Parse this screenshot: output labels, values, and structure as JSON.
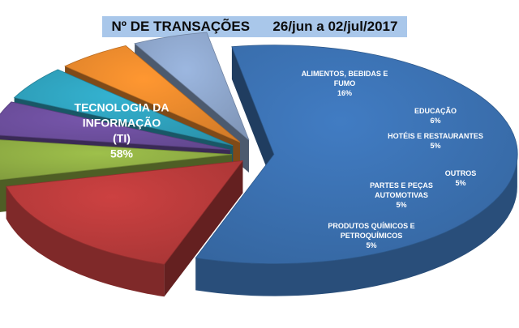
{
  "chart_data": {
    "type": "pie",
    "title": "Nº DE TRANSAÇÕES      26/jun a 02/jul/2017",
    "slices": [
      {
        "label": [
          "TECNOLOGIA DA",
          "INFORMAÇÃO",
          "(TI)"
        ],
        "value": 58,
        "value_label": "58%",
        "color": "#3a6fae"
      },
      {
        "label": [
          "ALIMENTOS, BEBIDAS E",
          "FUMO"
        ],
        "value": 16,
        "value_label": "16%",
        "color": "#b63a3a"
      },
      {
        "label": [
          "EDUCAÇÃO"
        ],
        "value": 6,
        "value_label": "6%",
        "color": "#8dab43"
      },
      {
        "label": [
          "HOTÉIS E RESTAURANTES"
        ],
        "value": 5,
        "value_label": "5%",
        "color": "#6a4d9a"
      },
      {
        "label": [
          "OUTROS"
        ],
        "value": 5,
        "value_label": "5%",
        "color": "#2e9fba"
      },
      {
        "label": [
          "PARTES E PEÇAS",
          "AUTOMOTIVAS"
        ],
        "value": 5,
        "value_label": "5%",
        "color": "#e6872c"
      },
      {
        "label": [
          "PRODUTOS QUÍMICOS E",
          "PETROQUÍMICOS"
        ],
        "value": 5,
        "value_label": "5%",
        "color": "#8ba3c8"
      }
    ],
    "legend": "none",
    "style": "3d-exploded"
  }
}
